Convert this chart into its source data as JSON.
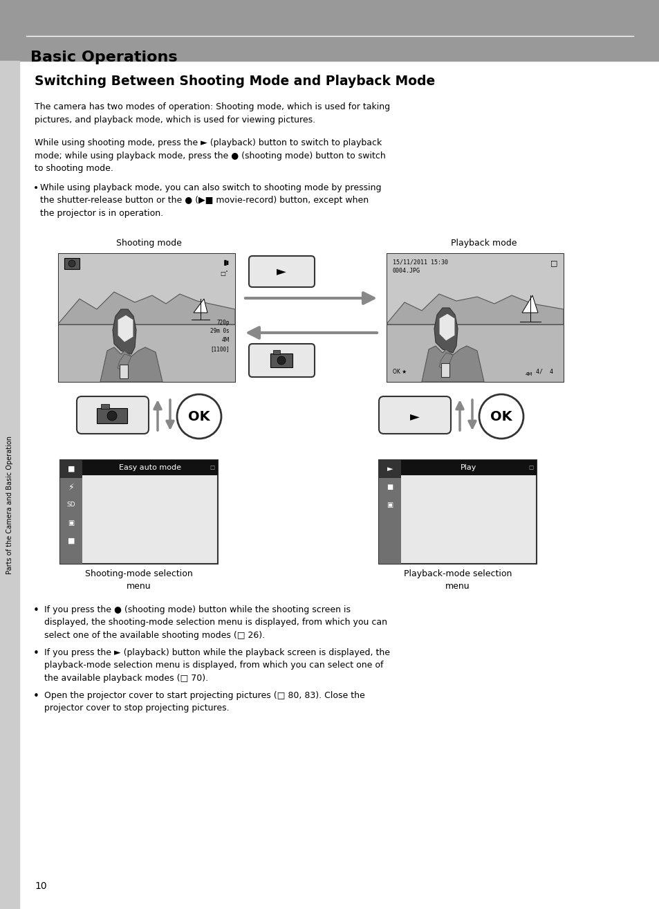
{
  "bg_color": "#ffffff",
  "header_bg": "#999999",
  "header_text": "Basic Operations",
  "header_line_color": "#ffffff",
  "title": "Switching Between Shooting Mode and Playback Mode",
  "para1": "The camera has two modes of operation: Shooting mode, which is used for taking\npictures, and playback mode, which is used for viewing pictures.",
  "para2": "While using shooting mode, press the ► (playback) button to switch to playback\nmode; while using playback mode, press the ● (shooting mode) button to switch\nto shooting mode.",
  "bullet1": "While using playback mode, you can also switch to shooting mode by pressing\nthe shutter-release button or the ● (▶■ movie-record) button, except when\nthe projector is in operation.",
  "shooting_mode_label": "Shooting mode",
  "playback_mode_label": "Playback mode",
  "shooting_mode_menu_label": "Shooting-mode selection\nmenu",
  "playback_mode_menu_label": "Playback-mode selection\nmenu",
  "easy_auto_mode": "Easy auto mode",
  "play": "Play",
  "bullets_bottom": [
    "If you press the ● (shooting mode) button while the shooting screen is\ndisplayed, the shooting-mode selection menu is displayed, from which you can\nselect one of the available shooting modes (□ 26).",
    "If you press the ► (playback) button while the playback screen is displayed, the\nplayback-mode selection menu is displayed, from which you can select one of\nthe available playback modes (□ 70).",
    "Open the projector cover to start projecting pictures (□ 80, 83). Close the\nprojector cover to stop projecting pictures."
  ],
  "page_number": "10",
  "sidebar_text": "Parts of the Camera and Basic Operation",
  "sidebar_bg": "#cccccc",
  "arrow_color": "#888888",
  "screen_bg": "#d0d0d0",
  "menu_sidebar_bg": "#707070",
  "menu_topbar_bg": "#111111",
  "menu_bg": "#e8e8e8"
}
